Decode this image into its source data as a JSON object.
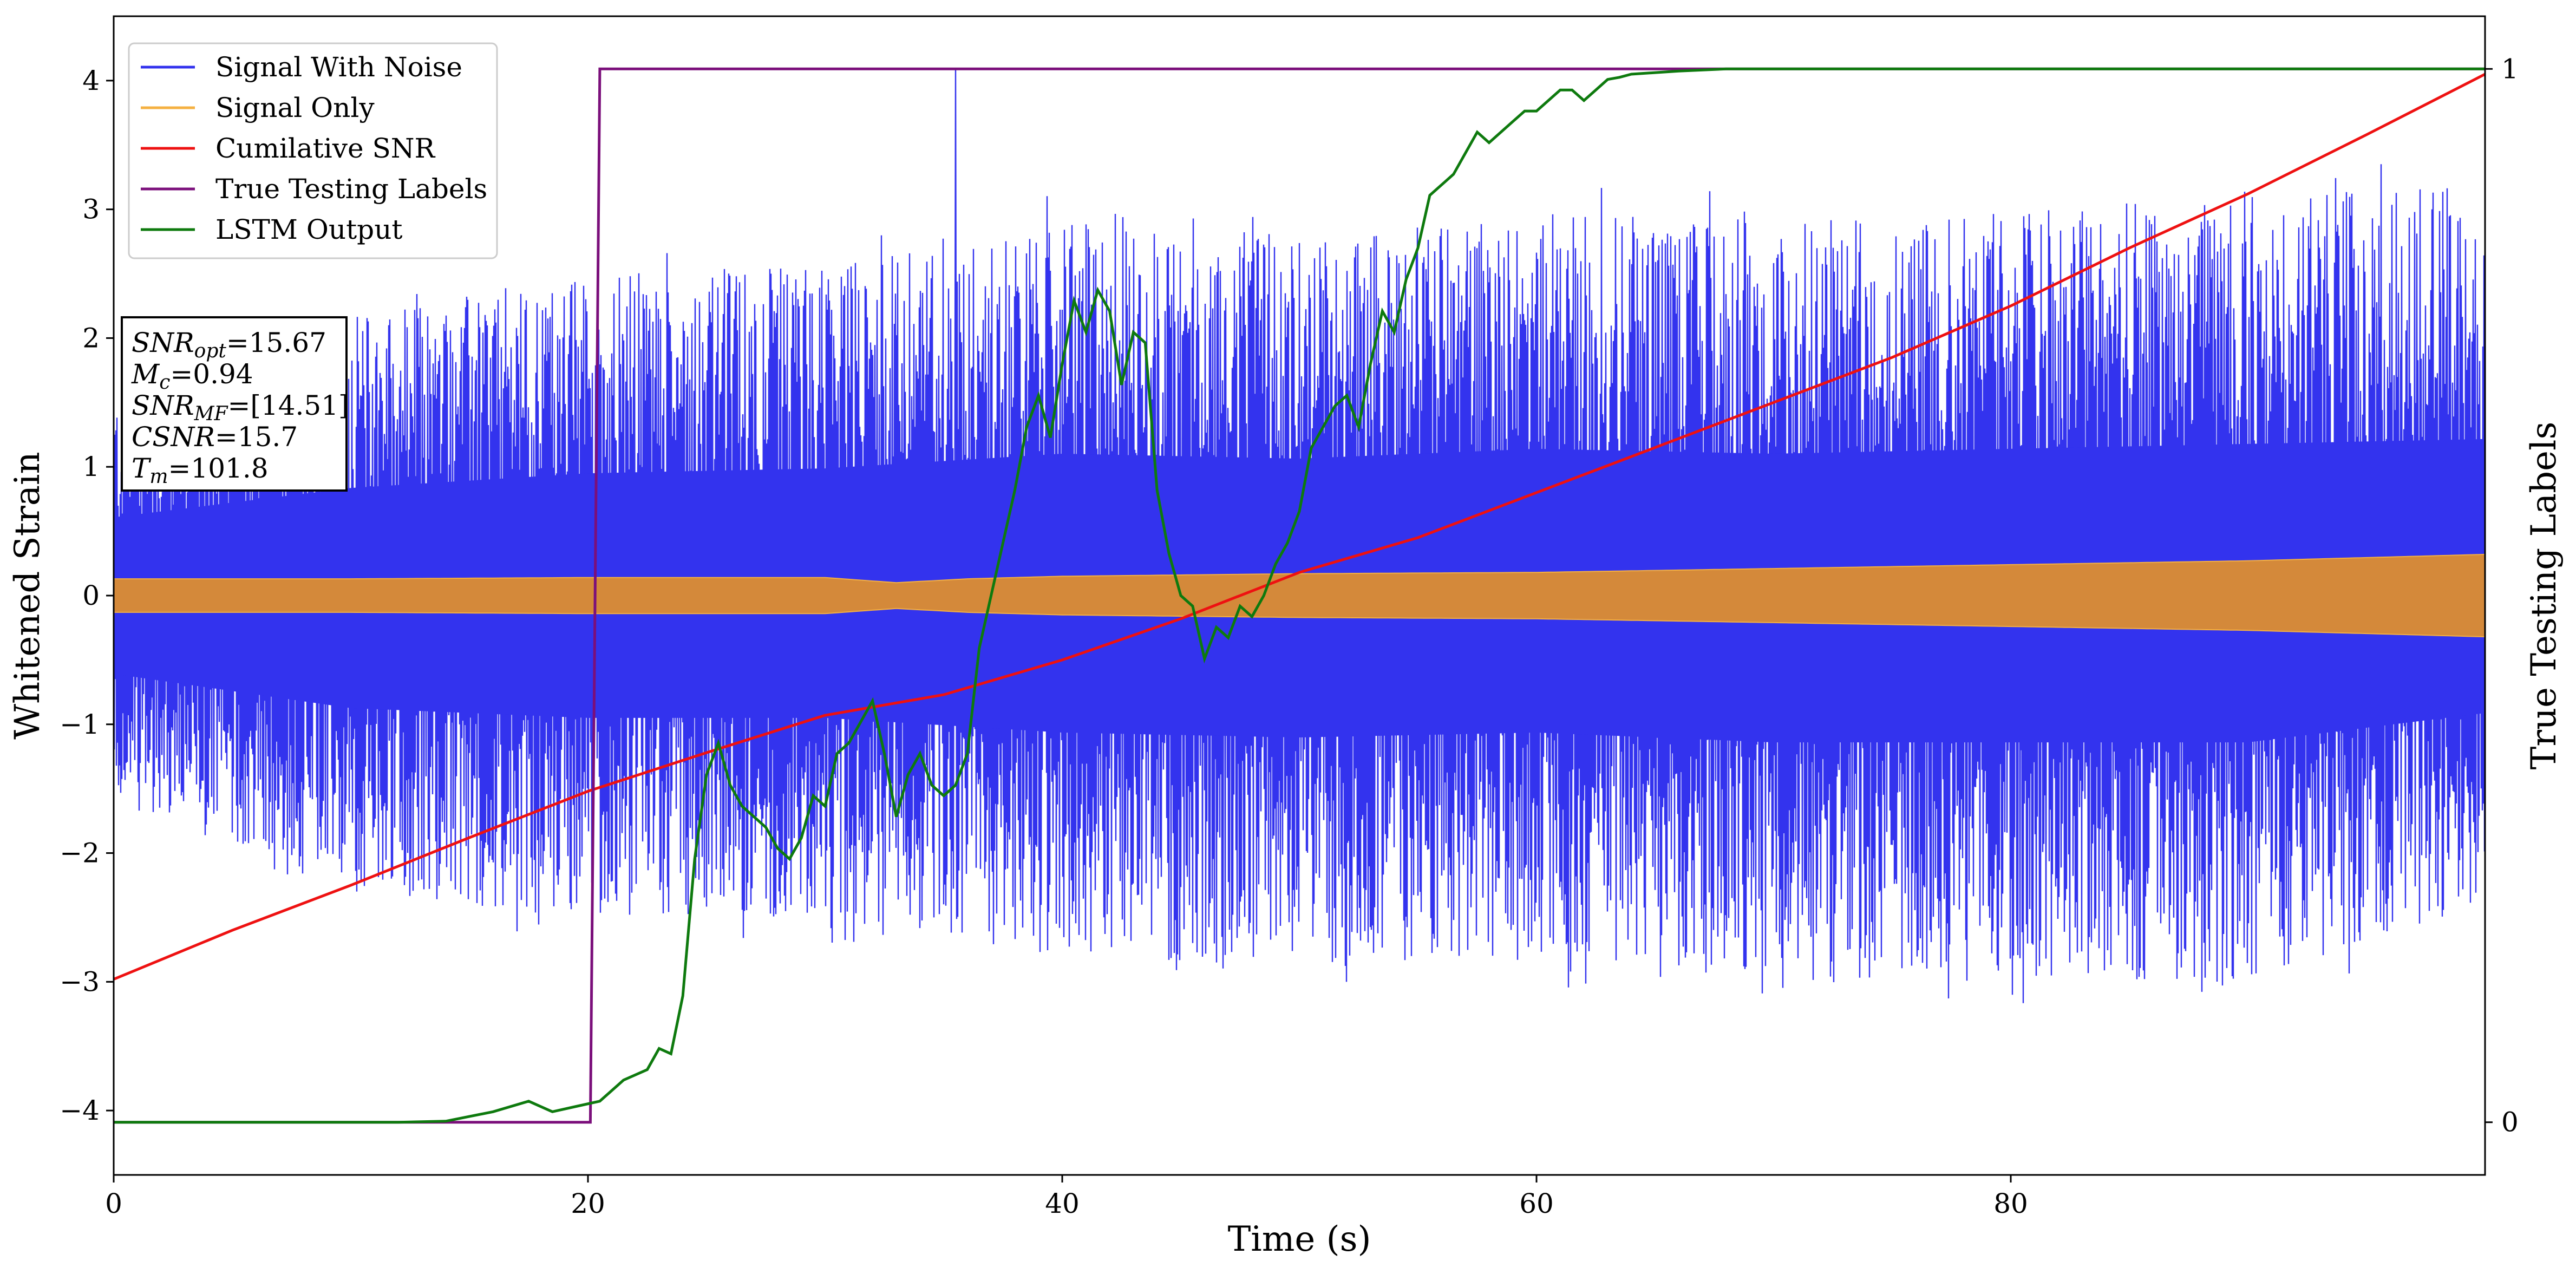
{
  "chart_data": {
    "type": "line",
    "title": "",
    "xlabel": "Time (s)",
    "ylabel": "Whitened Strain",
    "y2label": "True Testing Labels",
    "xlim": [
      0,
      100
    ],
    "ylim": [
      -4.5,
      4.5
    ],
    "y2lim": [
      -0.05,
      1.05
    ],
    "x_ticks": [
      0,
      20,
      40,
      60,
      80
    ],
    "y_ticks": [
      -4,
      -3,
      -2,
      -1,
      0,
      1,
      2,
      3,
      4
    ],
    "y2_ticks": [
      0,
      1
    ],
    "grid": false,
    "legend_position": "top-left",
    "colors": {
      "noise": "#3333ee",
      "signal": "#f5b041",
      "signal_overlap": "#d4893a",
      "csnr": "#ee1111",
      "labels": "#7b0f7b",
      "lstm": "#0e7a0e"
    },
    "series": [
      {
        "name": "Signal With Noise",
        "axis": "left",
        "style": "noise-band",
        "x": [
          0,
          10,
          20,
          30,
          40,
          50,
          60,
          70,
          80,
          90,
          100
        ],
        "upper_envelope": [
          1.6,
          2.2,
          2.5,
          2.6,
          2.9,
          2.8,
          3.0,
          2.9,
          3.0,
          3.1,
          3.2
        ],
        "lower_envelope": [
          -1.6,
          -2.3,
          -2.5,
          -2.5,
          -2.8,
          -2.9,
          -2.8,
          -3.0,
          -3.0,
          -3.0,
          -2.4
        ],
        "peak_x": 35.5,
        "peak_y": 4.1
      },
      {
        "name": "Signal Only",
        "axis": "left",
        "style": "band",
        "x": [
          0,
          10,
          20,
          30,
          33,
          36,
          40,
          50,
          60,
          70,
          80,
          90,
          100
        ],
        "amplitude": [
          0.13,
          0.13,
          0.14,
          0.14,
          0.1,
          0.13,
          0.15,
          0.17,
          0.18,
          0.21,
          0.24,
          0.27,
          0.32
        ]
      },
      {
        "name": "Cumilative SNR",
        "axis": "left",
        "x": [
          0,
          5,
          10,
          15,
          20,
          25,
          30,
          35,
          40,
          45,
          50,
          55,
          60,
          65,
          70,
          75,
          80,
          85,
          90,
          95,
          100
        ],
        "y": [
          -2.98,
          -2.6,
          -2.25,
          -1.88,
          -1.52,
          -1.22,
          -0.93,
          -0.77,
          -0.5,
          -0.18,
          0.18,
          0.45,
          0.8,
          1.15,
          1.5,
          1.85,
          2.25,
          2.7,
          3.12,
          3.58,
          4.05
        ]
      },
      {
        "name": "True Testing Labels",
        "axis": "right",
        "x": [
          0,
          20.1,
          20.5,
          100
        ],
        "y": [
          0,
          0,
          1,
          1
        ]
      },
      {
        "name": "LSTM Output",
        "axis": "right",
        "x": [
          0,
          12,
          14,
          16,
          17.5,
          18.5,
          19.5,
          20.5,
          21.5,
          22.5,
          23,
          23.5,
          24,
          24.5,
          25,
          25.5,
          26,
          26.5,
          27,
          27.5,
          28,
          28.5,
          29,
          29.5,
          30,
          30.5,
          31,
          31.5,
          32,
          32.5,
          33,
          33.5,
          34,
          34.5,
          35,
          35.5,
          36,
          36.5,
          37,
          37.5,
          38,
          38.5,
          39,
          39.5,
          40,
          40.5,
          41,
          41.5,
          42,
          42.5,
          43,
          43.5,
          44,
          44.5,
          45,
          45.5,
          46,
          46.5,
          47,
          47.5,
          48,
          48.5,
          49,
          49.5,
          50,
          50.5,
          51,
          51.5,
          52,
          52.5,
          53,
          53.5,
          54,
          54.5,
          55,
          55.5,
          56,
          56.5,
          57,
          57.5,
          58,
          58.5,
          59,
          59.5,
          60,
          61,
          61.5,
          62,
          62.5,
          63,
          63.5,
          64,
          66,
          68,
          75,
          90,
          100
        ],
        "y": [
          0,
          0,
          0.001,
          0.01,
          0.02,
          0.01,
          0.015,
          0.02,
          0.04,
          0.05,
          0.07,
          0.065,
          0.12,
          0.25,
          0.33,
          0.36,
          0.32,
          0.3,
          0.29,
          0.28,
          0.26,
          0.25,
          0.27,
          0.31,
          0.3,
          0.35,
          0.36,
          0.38,
          0.4,
          0.35,
          0.29,
          0.33,
          0.35,
          0.32,
          0.31,
          0.32,
          0.35,
          0.45,
          0.5,
          0.55,
          0.6,
          0.66,
          0.69,
          0.65,
          0.72,
          0.78,
          0.75,
          0.79,
          0.77,
          0.7,
          0.75,
          0.74,
          0.6,
          0.54,
          0.5,
          0.49,
          0.44,
          0.47,
          0.46,
          0.49,
          0.48,
          0.5,
          0.53,
          0.55,
          0.58,
          0.64,
          0.66,
          0.68,
          0.69,
          0.66,
          0.72,
          0.77,
          0.75,
          0.8,
          0.83,
          0.88,
          0.89,
          0.9,
          0.92,
          0.94,
          0.93,
          0.94,
          0.95,
          0.96,
          0.96,
          0.98,
          0.98,
          0.97,
          0.98,
          0.99,
          0.992,
          0.995,
          0.998,
          1.0,
          1.0,
          1.0,
          1.0
        ]
      }
    ],
    "annotation": {
      "position": "upper-left",
      "lines": [
        {
          "base": "SNR",
          "sub": "opt",
          "value": "=15.67"
        },
        {
          "base": "M",
          "sub": "c",
          "value": "=0.94"
        },
        {
          "base": "SNR",
          "sub": "MF",
          "value": "=[14.51]"
        },
        {
          "base": "CSNR",
          "sub": "",
          "value": "=15.7"
        },
        {
          "base": "T",
          "sub": "m",
          "value": "=101.8"
        }
      ]
    }
  }
}
